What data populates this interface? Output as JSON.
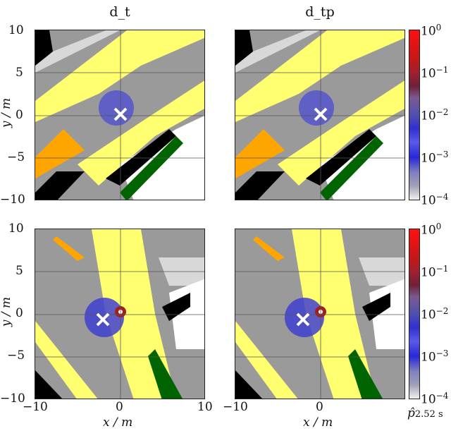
{
  "chart_data": [
    {
      "type": "heatmap",
      "title": "d_t",
      "panel": "top-left",
      "xlabel": "",
      "ylabel": "y / m",
      "xlim": [
        -10,
        10
      ],
      "ylim": [
        -10,
        10
      ],
      "xticks": [],
      "yticks": [
        "10",
        "5",
        "0",
        "−5",
        "−10"
      ],
      "marker": {
        "shape": "x",
        "color": "#ffffff",
        "x": 0,
        "y": 0.2
      },
      "grid": true
    },
    {
      "type": "heatmap",
      "title": "d_tp",
      "panel": "top-right",
      "xlim": [
        -10,
        10
      ],
      "ylim": [
        -10,
        10
      ],
      "marker": {
        "shape": "x",
        "color": "#ffffff",
        "x": 0,
        "y": 0.2
      },
      "grid": true
    },
    {
      "type": "heatmap",
      "title": "",
      "panel": "bottom-left",
      "xlabel": "x / m",
      "ylabel": "y / m",
      "xlim": [
        -10,
        10
      ],
      "ylim": [
        -10,
        10
      ],
      "xticks": [
        "−10",
        "0",
        "10"
      ],
      "yticks": [
        "10",
        "5",
        "0",
        "−5",
        "−10"
      ],
      "marker": {
        "shape": "x",
        "color": "#ffffff",
        "x": -2,
        "y": -0.8
      },
      "grid": true
    },
    {
      "type": "heatmap",
      "title": "",
      "panel": "bottom-right",
      "xlabel": "x / m",
      "xlim": [
        -10,
        10
      ],
      "ylim": [
        -10,
        10
      ],
      "xticks": [
        "−10",
        "0"
      ],
      "marker": {
        "shape": "x",
        "color": "#ffffff",
        "x": -2,
        "y": -0.8
      },
      "grid": true
    }
  ],
  "colorbar": {
    "label": "p̂2.52 s",
    "scale": "log",
    "ticks": [
      "10^0",
      "10^−1",
      "10^−2",
      "10^−3",
      "10^−4"
    ],
    "range": [
      0.0001,
      1
    ]
  },
  "labels": {
    "t1": "d_t",
    "t2": "d_tp",
    "y": "y / m",
    "x": "x / m",
    "cb": "p̂",
    "cbsub": "2.52 s",
    "yt": [
      "10",
      "5",
      "0",
      "−5",
      "−10"
    ],
    "xt": [
      "−10",
      "0",
      "10"
    ],
    "cb_exp": [
      "0",
      "−1",
      "−2",
      "−3",
      "−4"
    ],
    "ten": "10"
  }
}
